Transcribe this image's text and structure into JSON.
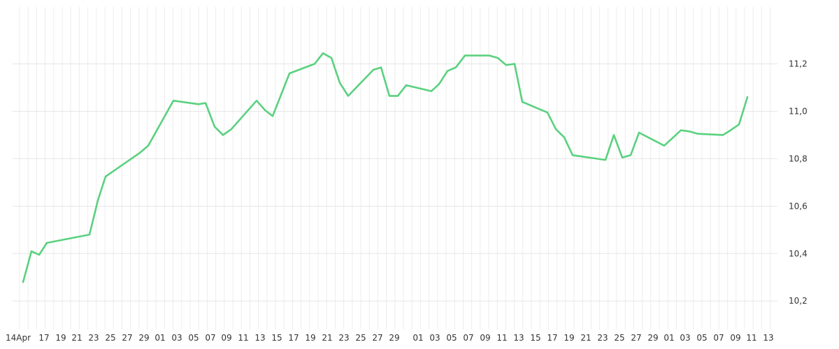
{
  "chart_data": {
    "type": "line",
    "title": "",
    "xlabel": "",
    "ylabel": "",
    "ylim": [
      10.08,
      11.44
    ],
    "y_ticks": [
      "10,2",
      "10,4",
      "10,6",
      "10,8",
      "11,0",
      "11,2"
    ],
    "x_tick_labels": [
      "14Apr",
      "17",
      "19",
      "21",
      "23",
      "25",
      "27",
      "29",
      "01",
      "03",
      "05",
      "07",
      "09",
      "11",
      "13",
      "15",
      "17",
      "19",
      "21",
      "23",
      "25",
      "27",
      "29",
      "01",
      "03",
      "05",
      "07",
      "09",
      "11",
      "13",
      "15",
      "17",
      "19",
      "21",
      "23",
      "25",
      "27",
      "29",
      "01",
      "03",
      "05",
      "07",
      "09",
      "11",
      "13"
    ],
    "grid": true,
    "line_color": "#5ad17f",
    "series": [
      {
        "values": [
          10.28,
          10.41,
          10.395,
          10.445,
          10.48,
          10.625,
          10.725,
          10.825,
          10.855,
          11.045,
          11.03,
          11.035,
          10.935,
          10.9,
          10.925,
          11.045,
          11.005,
          10.98,
          11.16,
          11.2,
          11.245,
          11.225,
          11.12,
          11.065,
          11.175,
          11.185,
          11.065,
          11.065,
          11.11,
          11.085,
          11.115,
          11.17,
          11.185,
          11.235,
          11.235,
          11.225,
          11.195,
          11.2,
          11.04,
          10.995,
          10.925,
          10.89,
          10.815,
          10.795,
          10.9,
          10.805,
          10.815,
          10.91,
          10.855,
          10.92,
          10.915,
          10.905,
          10.9,
          10.92,
          10.945,
          11.06
        ]
      }
    ]
  }
}
